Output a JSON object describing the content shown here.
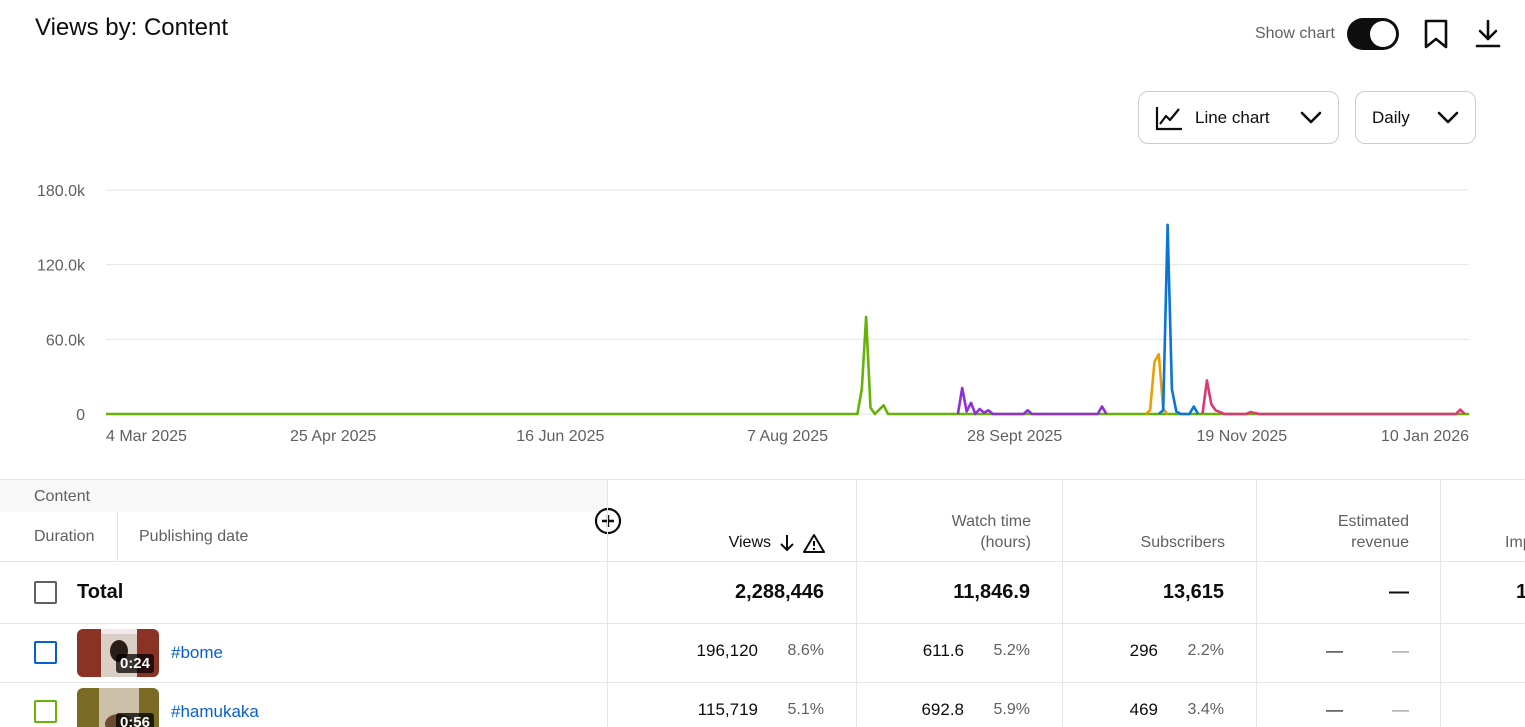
{
  "page": {
    "title": "Views by: Content"
  },
  "controls": {
    "show_chart_label": "Show chart",
    "show_chart_on": true,
    "chart_type": "Line chart",
    "period": "Daily"
  },
  "chart_data": {
    "type": "line",
    "title": "",
    "xlabel": "",
    "ylabel": "",
    "ylim": [
      0,
      180000
    ],
    "y_ticks": [
      "0",
      "60.0k",
      "120.0k",
      "180.0k"
    ],
    "y_tick_values": [
      0,
      60000,
      120000,
      180000
    ],
    "x_ticks": [
      "4 Mar 2025",
      "25 Apr 2025",
      "16 Jun 2025",
      "7 Aug 2025",
      "28 Sept 2025",
      "19 Nov 2025",
      "10 Jan 2026"
    ],
    "x_range": [
      "2025-03-04",
      "2026-01-10"
    ],
    "grid": true,
    "series": [
      {
        "color": "#65b307",
        "points": [
          [
            "2025-03-04",
            0
          ],
          [
            "2025-08-23",
            0
          ],
          [
            "2025-08-24",
            20000
          ],
          [
            "2025-08-25",
            78000
          ],
          [
            "2025-08-26",
            5000
          ],
          [
            "2025-08-27",
            0
          ],
          [
            "2025-08-29",
            7000
          ],
          [
            "2025-08-30",
            0
          ],
          [
            "2026-01-10",
            0
          ]
        ]
      },
      {
        "color": "#8f2fd6",
        "points": [
          [
            "2025-09-15",
            0
          ],
          [
            "2025-09-16",
            21000
          ],
          [
            "2025-09-17",
            2000
          ],
          [
            "2025-09-18",
            9000
          ],
          [
            "2025-09-19",
            0
          ],
          [
            "2025-09-20",
            4000
          ],
          [
            "2025-09-21",
            1000
          ],
          [
            "2025-09-22",
            3000
          ],
          [
            "2025-09-23",
            0
          ],
          [
            "2025-09-30",
            0
          ],
          [
            "2025-10-01",
            3000
          ],
          [
            "2025-10-02",
            0
          ],
          [
            "2025-10-17",
            0
          ],
          [
            "2025-10-18",
            6000
          ],
          [
            "2025-10-19",
            0
          ]
        ]
      },
      {
        "color": "#e6a00a",
        "points": [
          [
            "2025-10-28",
            0
          ],
          [
            "2025-10-29",
            3000
          ],
          [
            "2025-10-30",
            42000
          ],
          [
            "2025-10-31",
            48000
          ],
          [
            "2025-11-01",
            4000
          ],
          [
            "2025-11-02",
            0
          ]
        ]
      },
      {
        "color": "#0a75d6",
        "points": [
          [
            "2025-10-31",
            0
          ],
          [
            "2025-11-01",
            3000
          ],
          [
            "2025-11-02",
            152000
          ],
          [
            "2025-11-03",
            20000
          ],
          [
            "2025-11-04",
            2000
          ],
          [
            "2025-11-05",
            0
          ],
          [
            "2025-11-07",
            0
          ],
          [
            "2025-11-08",
            6000
          ],
          [
            "2025-11-09",
            0
          ]
        ]
      },
      {
        "color": "#d93a72",
        "points": [
          [
            "2025-11-10",
            0
          ],
          [
            "2025-11-11",
            27000
          ],
          [
            "2025-11-12",
            8000
          ],
          [
            "2025-11-13",
            3000
          ],
          [
            "2025-11-14",
            1500
          ],
          [
            "2025-11-15",
            0
          ],
          [
            "2025-11-20",
            0
          ],
          [
            "2025-11-21",
            1500
          ],
          [
            "2025-11-23",
            0
          ],
          [
            "2026-01-07",
            0
          ],
          [
            "2026-01-08",
            3500
          ],
          [
            "2026-01-09",
            0
          ]
        ]
      }
    ]
  },
  "table": {
    "content_header": "Content",
    "tab_duration": "Duration",
    "tab_publishing_date": "Publishing date",
    "columns": {
      "views": "Views",
      "watch_time_1": "Watch time",
      "watch_time_2": "(hours)",
      "subscribers": "Subscribers",
      "revenue_1": "Estimated",
      "revenue_2": "revenue",
      "impressions": "Imp"
    },
    "total": {
      "label": "Total",
      "views": "2,288,446",
      "watch_time": "11,846.9",
      "subscribers": "13,615",
      "revenue": "—",
      "impressions": "1"
    },
    "rows": [
      {
        "title": "#bome",
        "duration": "0:24",
        "checkbox_color": "#065fd4",
        "thumb_bg": "#8a3324",
        "views": "196,120",
        "views_pct": "8.6%",
        "watch": "611.6",
        "watch_pct": "5.2%",
        "subs": "296",
        "subs_pct": "2.2%",
        "revenue": "—",
        "revenue_pct": "—"
      },
      {
        "title": "#hamukaka",
        "duration": "0:56",
        "checkbox_color": "#65b307",
        "thumb_bg": "#7a6a24",
        "views": "115,719",
        "views_pct": "5.1%",
        "watch": "692.8",
        "watch_pct": "5.9%",
        "subs": "469",
        "subs_pct": "3.4%",
        "revenue": "—",
        "revenue_pct": "—"
      }
    ]
  }
}
